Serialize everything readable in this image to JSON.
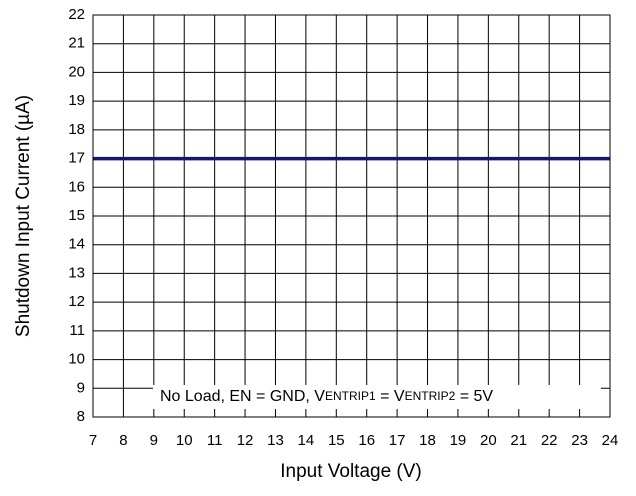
{
  "chart_data": {
    "type": "line",
    "xlabel": "Input Voltage (V)",
    "ylabel": "Shutdown Input Current (µA)",
    "annotation": [
      "No Load, EN = GND, V",
      "ENTRIP1",
      " = V",
      "ENTRIP2",
      " = 5V"
    ],
    "x": [
      7,
      24
    ],
    "series": [
      {
        "name": "Shutdown Input Current",
        "color": "#14147a",
        "values": [
          17,
          17
        ]
      }
    ],
    "xlim": [
      7,
      24
    ],
    "xticks": [
      7,
      8,
      9,
      10,
      11,
      12,
      13,
      14,
      15,
      16,
      17,
      18,
      19,
      20,
      21,
      22,
      23,
      24
    ],
    "ylim": [
      8,
      22
    ],
    "yticks": [
      8,
      9,
      10,
      11,
      12,
      13,
      14,
      15,
      16,
      17,
      18,
      19,
      20,
      21,
      22
    ],
    "grid": true
  }
}
